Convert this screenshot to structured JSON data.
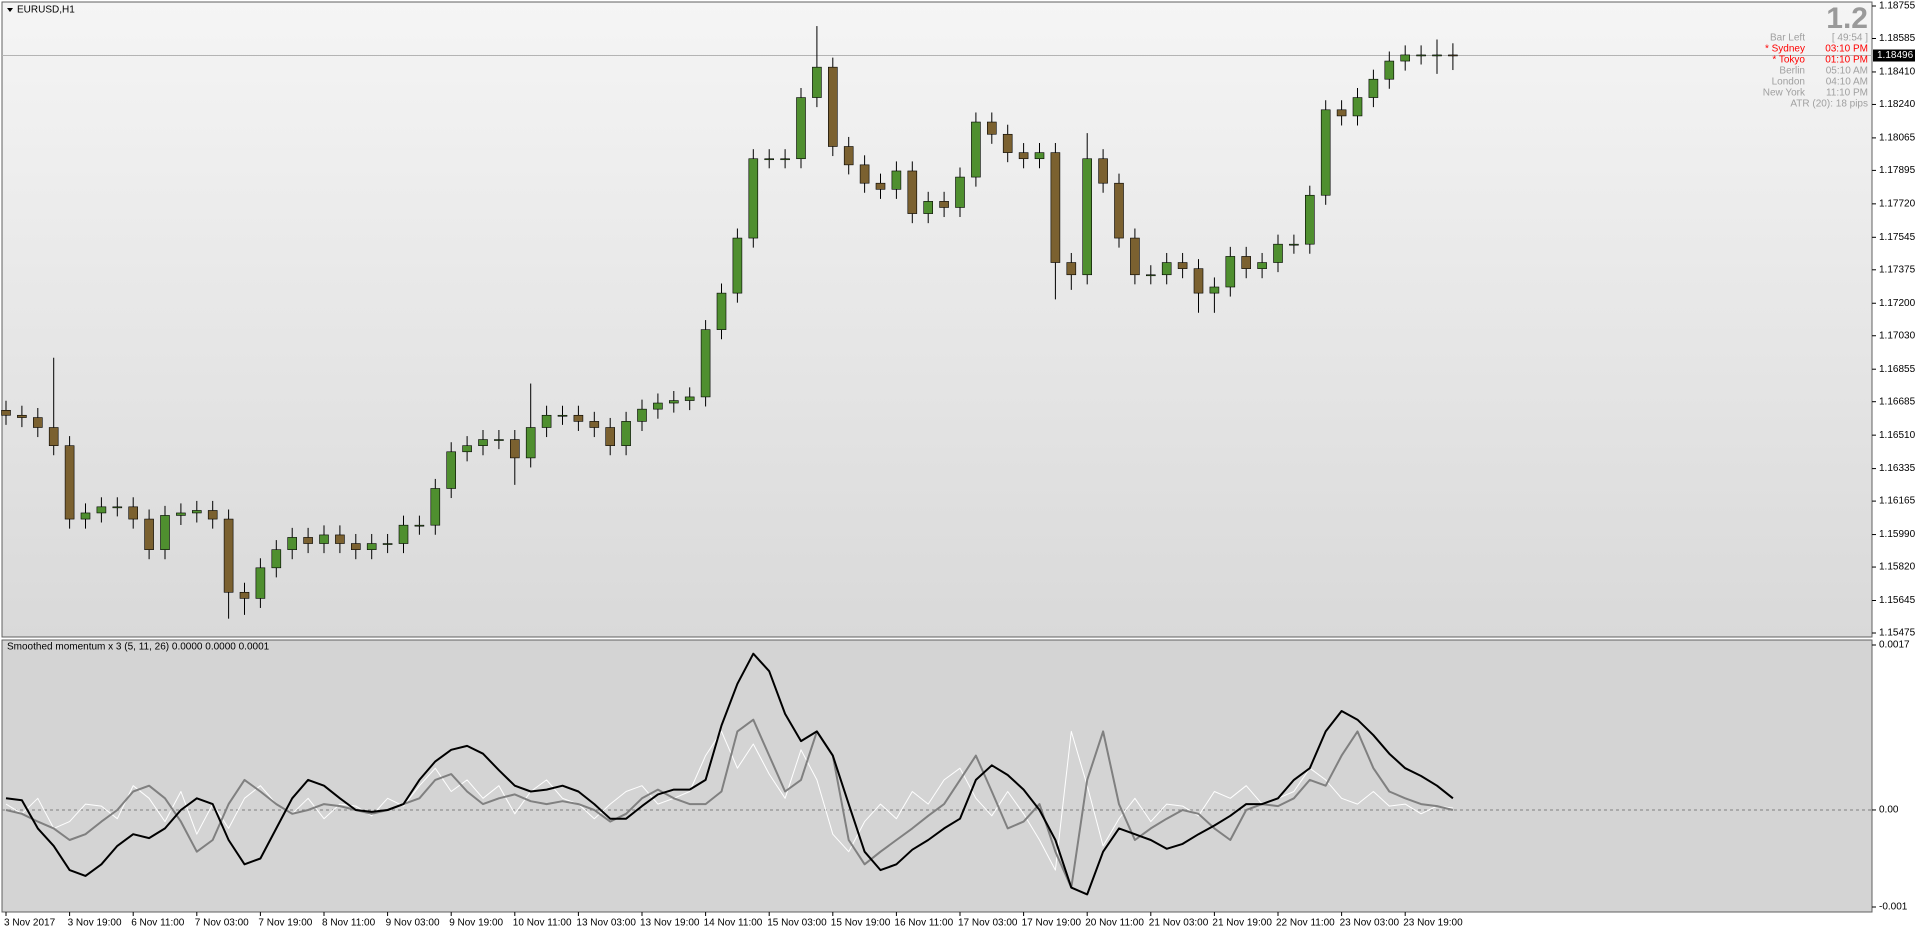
{
  "chart_data": [
    {
      "type": "candlestick",
      "title": "EURUSD,H1",
      "open": [
        1.1664,
        1.16614,
        1.16602,
        1.1655,
        1.16455,
        1.16071,
        1.16103,
        1.16135,
        1.16135,
        1.16071,
        1.15911,
        1.1609,
        1.16103,
        1.16116,
        1.16071,
        1.15688,
        1.15656,
        1.15816,
        1.15911,
        1.15975,
        1.15943,
        1.15988,
        1.15943,
        1.15911,
        1.15943,
        1.15943,
        1.16039,
        1.16039,
        1.16231,
        1.16423,
        1.16455,
        1.16487,
        1.16487,
        1.16391,
        1.1655,
        1.16614,
        1.16614,
        1.16582,
        1.1655,
        1.16455,
        1.16582,
        1.16646,
        1.16678,
        1.16691,
        1.1671,
        1.17062,
        1.17253,
        1.17541,
        1.17956,
        1.17956,
        1.17956,
        1.18276,
        1.18435,
        1.1802,
        1.17924,
        1.17828,
        1.17796,
        1.17892,
        1.17669,
        1.17733,
        1.17701,
        1.1786,
        1.18148,
        1.18084,
        1.17988,
        1.17956,
        1.17988,
        1.17413,
        1.17349,
        1.17956,
        1.17828,
        1.17541,
        1.17349,
        1.17349,
        1.17413,
        1.17381,
        1.17253,
        1.17285,
        1.17445,
        1.17381,
        1.17413,
        1.17509,
        1.17509,
        1.17765,
        1.18212,
        1.1818,
        1.18276,
        1.18372,
        1.18467,
        1.18499,
        1.18499,
        1.18499
      ],
      "high": [
        1.1669,
        1.16664,
        1.16652,
        1.16915,
        1.16505,
        1.16153,
        1.16185,
        1.16185,
        1.16185,
        1.16121,
        1.1614,
        1.16153,
        1.16166,
        1.16166,
        1.16121,
        1.15738,
        1.15866,
        1.15961,
        1.16025,
        1.16025,
        1.16038,
        1.16038,
        1.15993,
        1.15993,
        1.15993,
        1.16089,
        1.16089,
        1.16281,
        1.16473,
        1.16505,
        1.16537,
        1.16537,
        1.16537,
        1.1678,
        1.16664,
        1.16664,
        1.16664,
        1.16632,
        1.166,
        1.16632,
        1.16696,
        1.16728,
        1.16741,
        1.1676,
        1.17112,
        1.17303,
        1.17591,
        1.18006,
        1.18006,
        1.18006,
        1.18326,
        1.1865,
        1.18485,
        1.1807,
        1.17974,
        1.17878,
        1.17942,
        1.17942,
        1.17783,
        1.17783,
        1.1791,
        1.18198,
        1.18198,
        1.18134,
        1.18038,
        1.18038,
        1.18038,
        1.17463,
        1.1809,
        1.18006,
        1.17878,
        1.17591,
        1.17399,
        1.17463,
        1.17463,
        1.17431,
        1.17335,
        1.17495,
        1.17495,
        1.17463,
        1.17559,
        1.17559,
        1.17815,
        1.18262,
        1.18262,
        1.18326,
        1.18422,
        1.18517,
        1.18549,
        1.18549,
        1.1858,
        1.1856
      ],
      "low": [
        1.16564,
        1.16552,
        1.165,
        1.16405,
        1.16021,
        1.16021,
        1.16053,
        1.16085,
        1.16021,
        1.15861,
        1.15861,
        1.1604,
        1.16053,
        1.16021,
        1.1555,
        1.1557,
        1.15606,
        1.15766,
        1.15861,
        1.15893,
        1.15893,
        1.15893,
        1.15861,
        1.15861,
        1.15893,
        1.15893,
        1.15989,
        1.15989,
        1.16181,
        1.16373,
        1.16405,
        1.16437,
        1.1625,
        1.16341,
        1.165,
        1.16564,
        1.16532,
        1.165,
        1.16405,
        1.16405,
        1.16532,
        1.16596,
        1.16628,
        1.16641,
        1.1666,
        1.17012,
        1.17203,
        1.17491,
        1.17906,
        1.17906,
        1.17906,
        1.18226,
        1.1797,
        1.17874,
        1.17778,
        1.17746,
        1.17746,
        1.17619,
        1.17619,
        1.17651,
        1.17651,
        1.1781,
        1.18034,
        1.17938,
        1.17906,
        1.17906,
        1.1722,
        1.1727,
        1.17299,
        1.17778,
        1.17491,
        1.17299,
        1.17299,
        1.17299,
        1.17331,
        1.1715,
        1.1715,
        1.17235,
        1.17331,
        1.17331,
        1.17363,
        1.17459,
        1.17459,
        1.17715,
        1.1813,
        1.1813,
        1.18226,
        1.18322,
        1.18417,
        1.18449,
        1.184,
        1.1842
      ],
      "close": [
        1.16614,
        1.16602,
        1.1655,
        1.16455,
        1.16071,
        1.16103,
        1.16135,
        1.16135,
        1.16071,
        1.15911,
        1.1609,
        1.16103,
        1.16116,
        1.16071,
        1.15688,
        1.15656,
        1.15816,
        1.15911,
        1.15975,
        1.15943,
        1.15988,
        1.15943,
        1.15911,
        1.15943,
        1.15943,
        1.16039,
        1.16039,
        1.16231,
        1.16423,
        1.16455,
        1.16487,
        1.16487,
        1.16391,
        1.1655,
        1.16614,
        1.16614,
        1.16582,
        1.1655,
        1.16455,
        1.16582,
        1.16646,
        1.16678,
        1.16691,
        1.1671,
        1.17062,
        1.17253,
        1.17541,
        1.17956,
        1.17956,
        1.17956,
        1.18276,
        1.18435,
        1.1802,
        1.17924,
        1.17828,
        1.17796,
        1.17892,
        1.17669,
        1.17733,
        1.17701,
        1.1786,
        1.18148,
        1.18084,
        1.17988,
        1.17956,
        1.17988,
        1.17413,
        1.17349,
        1.17956,
        1.17828,
        1.17541,
        1.17349,
        1.17349,
        1.17413,
        1.17381,
        1.17253,
        1.17285,
        1.17445,
        1.17381,
        1.17413,
        1.17509,
        1.17509,
        1.17765,
        1.18212,
        1.1818,
        1.18276,
        1.18372,
        1.18467,
        1.18499,
        1.18499,
        1.18499,
        1.18496
      ],
      "bull_color": "#4f8f2f",
      "bear_color": "#7b6130",
      "current_price": 1.18496,
      "ylim": [
        1.15475,
        1.18755
      ],
      "yticks": [
        1.18755,
        1.18585,
        {
          "value": 1.1841,
          "label": "1.18410"
        },
        {
          "value": 1.1824,
          "label": "1.18240"
        },
        1.18065,
        1.17895,
        {
          "value": 1.1772,
          "label": "1.17720"
        },
        1.17545,
        1.17375,
        {
          "value": 1.172,
          "label": "1.17200"
        },
        {
          "value": 1.1703,
          "label": "1.17030"
        },
        1.16855,
        1.16685,
        {
          "value": 1.1651,
          "label": "1.16510"
        },
        1.16335,
        1.16165,
        {
          "value": 1.1599,
          "label": "1.15990"
        },
        {
          "value": 1.1582,
          "label": "1.15820"
        },
        1.15645,
        1.15475
      ],
      "grid": false
    },
    {
      "type": "line",
      "title": "Smoothed momentum x 3 (5, 11, 26) 0.0000 0.0000 0.0001",
      "categories": [
        "3 Nov 2017",
        null,
        null,
        null,
        "3 Nov 19:00",
        null,
        null,
        null,
        "6 Nov 11:00",
        null,
        null,
        null,
        "7 Nov 03:00",
        null,
        null,
        null,
        "7 Nov 19:00",
        null,
        null,
        null,
        "8 Nov 11:00",
        null,
        null,
        null,
        "9 Nov 03:00",
        null,
        null,
        null,
        "9 Nov 19:00",
        null,
        null,
        null,
        "10 Nov 11:00",
        null,
        null,
        null,
        "13 Nov 03:00",
        null,
        null,
        null,
        "13 Nov 19:00",
        null,
        null,
        null,
        "14 Nov 11:00",
        null,
        null,
        null,
        "15 Nov 03:00",
        null,
        null,
        null,
        "15 Nov 19:00",
        null,
        null,
        null,
        "16 Nov 11:00",
        null,
        null,
        null,
        "17 Nov 03:00",
        null,
        null,
        null,
        "17 Nov 19:00",
        null,
        null,
        null,
        "20 Nov 11:00",
        null,
        null,
        null,
        "21 Nov 03:00",
        null,
        null,
        null,
        "21 Nov 19:00",
        null,
        null,
        null,
        "22 Nov 11:00",
        null,
        null,
        null,
        "23 Nov 03:00",
        null,
        null,
        null,
        "23 Nov 19:00",
        null,
        null,
        null
      ],
      "series": [
        {
          "color": "#ffffff",
          "width": 1,
          "values": [
            6e-05,
            -4e-05,
            0.00012,
            -0.00019,
            -0.00012,
            6e-05,
            4e-05,
            -9e-05,
            0.00025,
            0.00012,
            -0.00012,
            0.00019,
            -0.00025,
            6e-05,
            -0.00019,
            0.00012,
            0.00025,
            6e-05,
            -4e-05,
            0.00012,
            -9e-05,
            6e-05,
            4e-05,
            -6e-05,
            0.00012,
            4e-05,
            0.00025,
            0.00043,
            0.00019,
            0.00031,
            0.00012,
            0.00025,
            -4e-05,
            0.00019,
            0.00031,
            0.00012,
            6e-05,
            -9e-05,
            6e-05,
            0.00019,
            0.00025,
            6e-05,
            0.00012,
            0.00019,
            0.00056,
            0.00081,
            0.00043,
            0.00068,
            0.00037,
            0.00012,
            0.00062,
            0.00031,
            -0.00025,
            -0.00043,
            -0.00012,
            6e-05,
            -9e-05,
            0.00019,
            6e-05,
            0.00031,
            0.00043,
            0.00012,
            -6e-05,
            0.00019,
            -4e-05,
            -0.00031,
            -0.00062,
            0.00081,
            0.00025,
            -0.00037,
            -9e-05,
            0.00012,
            -0.00012,
            6e-05,
            4e-05,
            -6e-05,
            0.00019,
            0.00012,
            0.00025,
            6e-05,
            0.00012,
            0.00019,
            0.00043,
            0.00031,
            0.00012,
            6e-05,
            0.00019,
            4e-05,
            6e-05,
            -4e-05,
            4e-05,
            2e-05
          ]
        },
        {
          "color": "#808080",
          "width": 2,
          "values": [
            0,
            -4e-05,
            -0.00012,
            -0.00019,
            -0.00031,
            -0.00025,
            -0.00012,
            0,
            0.00019,
            0.00025,
            0.00012,
            -0.00012,
            -0.00043,
            -0.00031,
            6e-05,
            0.00031,
            0.00019,
            6e-05,
            -4e-05,
            0,
            6e-05,
            4e-05,
            0,
            -4e-05,
            0,
            6e-05,
            0.00012,
            0.00031,
            0.00037,
            0.00019,
            6e-05,
            0.00012,
            0.00016,
            9e-05,
            6e-05,
            9e-05,
            6e-05,
            0,
            -0.00012,
            -4e-05,
            0.00012,
            0.00021,
            0.00012,
            6e-05,
            6e-05,
            0.00019,
            0.00081,
            0.00093,
            0.00056,
            0.00019,
            0.00031,
            0.00081,
            0.00056,
            -0.00031,
            -0.00056,
            -0.00043,
            -0.00031,
            -0.00019,
            -6e-05,
            6e-05,
            0.00031,
            0.00056,
            0.00019,
            -0.00019,
            -0.00012,
            6e-05,
            -0.00043,
            -0.0008,
            0.00031,
            0.00081,
            6e-05,
            -0.00031,
            -0.00019,
            -9e-05,
            0,
            -4e-05,
            -0.00019,
            -0.00031,
            0,
            6e-05,
            4e-05,
            0.00012,
            0.00031,
            0.00025,
            0.00056,
            0.00081,
            0.00043,
            0.00019,
            0.00012,
            6e-05,
            4e-05,
            0
          ]
        },
        {
          "color": "#000000",
          "width": 2,
          "values": [
            0.00012,
            0.0001,
            -0.00019,
            -0.00037,
            -0.00062,
            -0.00068,
            -0.00056,
            -0.00037,
            -0.00025,
            -0.00029,
            -0.00019,
            0,
            0.00012,
            6e-05,
            -0.00031,
            -0.00056,
            -0.0005,
            -0.00019,
            0.00012,
            0.00031,
            0.00025,
            0.00012,
            0,
            -2e-05,
            0,
            6e-05,
            0.00031,
            0.0005,
            0.00062,
            0.00066,
            0.00058,
            0.00041,
            0.00025,
            0.00019,
            0.00021,
            0.00025,
            0.00019,
            6e-05,
            -9e-05,
            -9e-05,
            4e-05,
            0.00016,
            0.00021,
            0.00021,
            0.00031,
            0.00087,
            0.0013,
            0.00161,
            0.00143,
            0.00099,
            0.00071,
            0.00081,
            0.00056,
            6e-05,
            -0.00043,
            -0.00062,
            -0.00056,
            -0.00041,
            -0.00031,
            -0.00019,
            -9e-05,
            0.00031,
            0.00046,
            0.00036,
            0.00021,
            0,
            -0.00031,
            -0.0008,
            -0.00087,
            -0.00043,
            -0.00019,
            -0.00025,
            -0.00031,
            -0.0004,
            -0.00035,
            -0.00025,
            -0.00016,
            -6e-05,
            6e-05,
            6e-05,
            0.00012,
            0.00031,
            0.00043,
            0.00081,
            0.00102,
            0.00093,
            0.00077,
            0.00058,
            0.00043,
            0.00035,
            0.00025,
            0.00012
          ]
        }
      ],
      "ylim": [
        -0.001,
        0.0017
      ],
      "yticks": [
        0.0017,
        {
          "value": 0,
          "label": "0.00"
        },
        -0.001
      ],
      "zero_line": true,
      "grid": false
    }
  ],
  "info_panel": {
    "big_value": "1.2",
    "rows": [
      {
        "label": "Bar Left",
        "value": "[ 49:54 ]",
        "color": "#a0a0a0"
      },
      {
        "label": "* Sydney",
        "value": "03:10 PM",
        "color": "#ff0000"
      },
      {
        "label": "* Tokyo",
        "value": "01:10 PM",
        "color": "#ff0000"
      },
      {
        "label": "Berlin",
        "value": "05:10 AM",
        "color": "#a0a0a0"
      },
      {
        "label": "London",
        "value": "04:10 AM",
        "color": "#a0a0a0"
      },
      {
        "label": "New York",
        "value": "11:10 PM",
        "color": "#a0a0a0"
      }
    ],
    "atr": "ATR (20): 18 pips"
  }
}
